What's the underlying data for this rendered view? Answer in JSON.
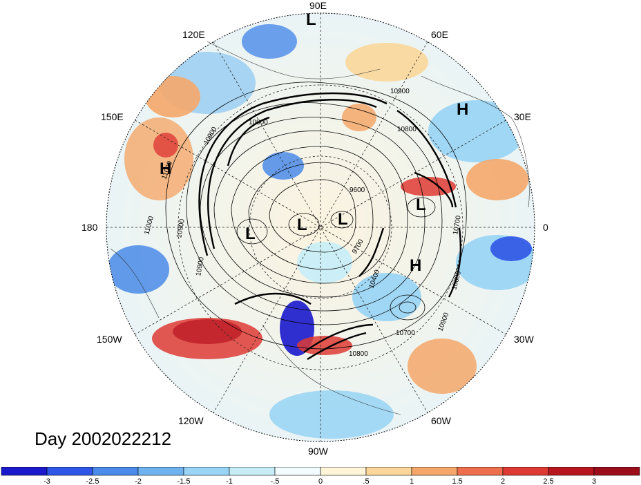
{
  "title": "Day 2002022212",
  "lon_labels": {
    "n": "90E",
    "ne": "60E",
    "ene": "30E",
    "e": "0",
    "ese": "30W",
    "se": "60W",
    "s": "90W",
    "sw": "120W",
    "wsw": "150W",
    "w": "180",
    "wnw": "150E",
    "nw": "120E"
  },
  "pressure_centers": [
    "L",
    "H",
    "H",
    "L",
    "L",
    "L",
    "L",
    "H"
  ],
  "contour_labels": [
    "10900",
    "10900",
    "10800",
    "11000",
    "10900",
    "9600",
    "9700",
    "10400",
    "10800",
    "10700",
    "10900",
    "10700",
    "10800",
    "10900",
    "11000",
    "10900"
  ],
  "colorbar": {
    "ticks": [
      "-3",
      "-2.5",
      "-2",
      "-1.5",
      "-1",
      "-.5",
      "0",
      ".5",
      "1",
      "1.5",
      "2",
      "2.5",
      "3"
    ],
    "colors": [
      "#1a1acc",
      "#2e55e6",
      "#4a8ae8",
      "#6fb2f0",
      "#97d4f5",
      "#c6edf7",
      "#f2fbff",
      "#fff5d8",
      "#fbd79a",
      "#f5a76a",
      "#ee6f4d",
      "#de3a34",
      "#b8161f",
      "#9b0d1a"
    ]
  }
}
